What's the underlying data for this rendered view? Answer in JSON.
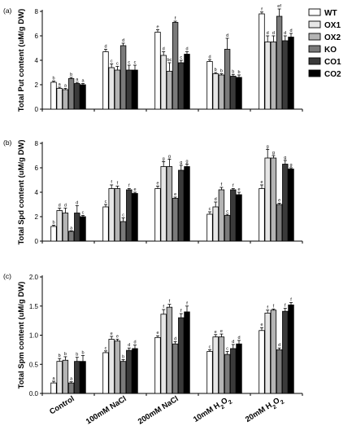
{
  "figure": {
    "categories": [
      "Control",
      "100mM NaCl",
      "200mM NaCl",
      "10mM H2O2",
      "20mM H2O2"
    ],
    "legend": {
      "position": "top-right",
      "items": [
        {
          "name": "WT",
          "color": "#ffffff"
        },
        {
          "name": "OX1",
          "color": "#e6e6e6"
        },
        {
          "name": "OX2",
          "color": "#b4b4b4"
        },
        {
          "name": "KO",
          "color": "#7a7a7a"
        },
        {
          "name": "CO1",
          "color": "#3a3a3a"
        },
        {
          "name": "CO2",
          "color": "#000000"
        }
      ]
    }
  },
  "chart_data": [
    {
      "type": "bar",
      "panel_label": "(a)",
      "ylabel": "Total Put content (uM/g DW)",
      "ylim": [
        0,
        8
      ],
      "yticks": [
        0,
        2,
        4,
        6,
        8
      ],
      "categories": [
        "Control",
        "100mM NaCl",
        "200mM NaCl",
        "10mM H2O2",
        "20mM H2O2"
      ],
      "series": [
        {
          "name": "WT",
          "values": [
            2.2,
            4.7,
            6.3,
            3.9,
            7.8
          ],
          "errors": [
            0.1,
            0.2,
            0.2,
            0.15,
            0.15
          ],
          "letters": [
            "b",
            "d",
            "e",
            "d",
            "f"
          ]
        },
        {
          "name": "OX1",
          "values": [
            1.7,
            3.4,
            4.4,
            2.9,
            5.5
          ],
          "errors": [
            0.1,
            0.3,
            0.3,
            0.1,
            0.5
          ],
          "letters": [
            "a",
            "c",
            "d",
            "b",
            "d"
          ]
        },
        {
          "name": "OX2",
          "values": [
            1.6,
            3.2,
            3.1,
            2.8,
            5.5
          ],
          "errors": [
            0.1,
            0.3,
            0.7,
            0.1,
            0.5
          ],
          "letters": [
            "a",
            "c",
            "bc",
            "b",
            "d"
          ]
        },
        {
          "name": "KO",
          "values": [
            2.5,
            5.2,
            7.1,
            4.9,
            7.6
          ],
          "errors": [
            0.1,
            0.2,
            0.1,
            0.9,
            0.6
          ],
          "letters": [
            "b",
            "d",
            "f",
            "d",
            "ef"
          ]
        },
        {
          "name": "CO1",
          "values": [
            2.1,
            3.2,
            3.8,
            2.7,
            5.6
          ],
          "errors": [
            0.1,
            0.4,
            0.2,
            0.15,
            0.4
          ],
          "letters": [
            "a",
            "c",
            "c",
            "b",
            "d"
          ]
        },
        {
          "name": "CO2",
          "values": [
            2.0,
            3.2,
            4.5,
            2.6,
            5.9
          ],
          "errors": [
            0.1,
            0.4,
            0.2,
            0.2,
            0.3
          ],
          "letters": [
            "a",
            "c",
            "d",
            "b",
            "d"
          ]
        }
      ]
    },
    {
      "type": "bar",
      "panel_label": "(b)",
      "ylabel": "Total Spd content (uM/g DW)",
      "ylim": [
        0,
        8
      ],
      "yticks": [
        0,
        2,
        4,
        6,
        8
      ],
      "categories": [
        "Control",
        "100mM NaCl",
        "200mM NaCl",
        "10mM H2O2",
        "20mM H2O2"
      ],
      "series": [
        {
          "name": "WT",
          "values": [
            1.2,
            2.8,
            4.3,
            2.2,
            4.3
          ],
          "errors": [
            0.1,
            0.2,
            0.2,
            0.2,
            0.3
          ],
          "letters": [
            "b",
            "c",
            "e",
            "c",
            "e"
          ]
        },
        {
          "name": "OX1",
          "values": [
            2.5,
            4.3,
            6.1,
            2.8,
            6.8
          ],
          "errors": [
            0.2,
            0.3,
            0.4,
            0.4,
            0.7
          ],
          "letters": [
            "d",
            "f",
            "g",
            "d",
            "g"
          ]
        },
        {
          "name": "OX2",
          "values": [
            2.3,
            4.3,
            6.1,
            4.2,
            6.8
          ],
          "errors": [
            0.4,
            0.2,
            0.6,
            0.2,
            0.2
          ],
          "letters": [
            "d",
            "f",
            "g",
            "f",
            "g"
          ]
        },
        {
          "name": "KO",
          "values": [
            0.8,
            1.6,
            3.5,
            2.1,
            3.0
          ],
          "errors": [
            0.05,
            0.3,
            0.1,
            0.1,
            0.1
          ],
          "letters": [
            "a",
            "c",
            "e",
            "c",
            "e"
          ]
        },
        {
          "name": "CO1",
          "values": [
            2.3,
            4.2,
            5.8,
            4.2,
            6.3
          ],
          "errors": [
            0.6,
            0.1,
            0.4,
            0.1,
            0.3
          ],
          "letters": [
            "d",
            "f",
            "g",
            "f",
            "g"
          ]
        },
        {
          "name": "CO2",
          "values": [
            2.0,
            3.9,
            6.1,
            3.8,
            5.9
          ],
          "errors": [
            0.1,
            0.1,
            0.2,
            0.2,
            0.1
          ],
          "letters": [
            "c",
            "e",
            "g",
            "e",
            "g"
          ]
        }
      ]
    },
    {
      "type": "bar",
      "panel_label": "(c)",
      "ylabel": "Total Spm content (uM/g DW)",
      "ylim": [
        0,
        2.0
      ],
      "yticks": [
        0.0,
        0.5,
        1.0,
        1.5,
        2.0
      ],
      "categories": [
        "Control",
        "100mM NaCl",
        "200mM NaCl",
        "10mM H2O2",
        "20mM H2O2"
      ],
      "series": [
        {
          "name": "WT",
          "values": [
            0.18,
            0.7,
            0.96,
            0.72,
            1.08
          ],
          "errors": [
            0.03,
            0.03,
            0.03,
            0.03,
            0.05
          ],
          "letters": [
            "a",
            "c",
            "e",
            "c",
            "e"
          ]
        },
        {
          "name": "OX1",
          "values": [
            0.55,
            0.93,
            1.36,
            0.97,
            1.38
          ],
          "errors": [
            0.05,
            0.05,
            0.08,
            0.04,
            0.05
          ],
          "letters": [
            "b",
            "e",
            "f",
            "e",
            "f"
          ]
        },
        {
          "name": "OX2",
          "values": [
            0.57,
            0.9,
            1.48,
            0.97,
            1.43
          ],
          "errors": [
            0.06,
            0.03,
            0.05,
            0.05,
            0.02
          ],
          "letters": [
            "b",
            "e",
            "f",
            "e",
            "f"
          ]
        },
        {
          "name": "KO",
          "values": [
            0.18,
            0.55,
            0.85,
            0.67,
            0.75
          ],
          "errors": [
            0.02,
            0.03,
            0.04,
            0.05,
            0.03
          ],
          "letters": [
            "a",
            "b",
            "d",
            "c",
            "d"
          ]
        },
        {
          "name": "CO1",
          "values": [
            0.55,
            0.74,
            1.3,
            0.77,
            1.41
          ],
          "errors": [
            0.07,
            0.04,
            0.07,
            0.07,
            0.05
          ],
          "letters": [
            "b",
            "d",
            "f",
            "d",
            "f"
          ]
        },
        {
          "name": "CO2",
          "values": [
            0.55,
            0.77,
            1.4,
            0.85,
            1.52
          ],
          "errors": [
            0.1,
            0.06,
            0.1,
            0.06,
            0.04
          ],
          "letters": [
            "b",
            "d",
            "f",
            "d",
            "f"
          ]
        }
      ]
    }
  ]
}
